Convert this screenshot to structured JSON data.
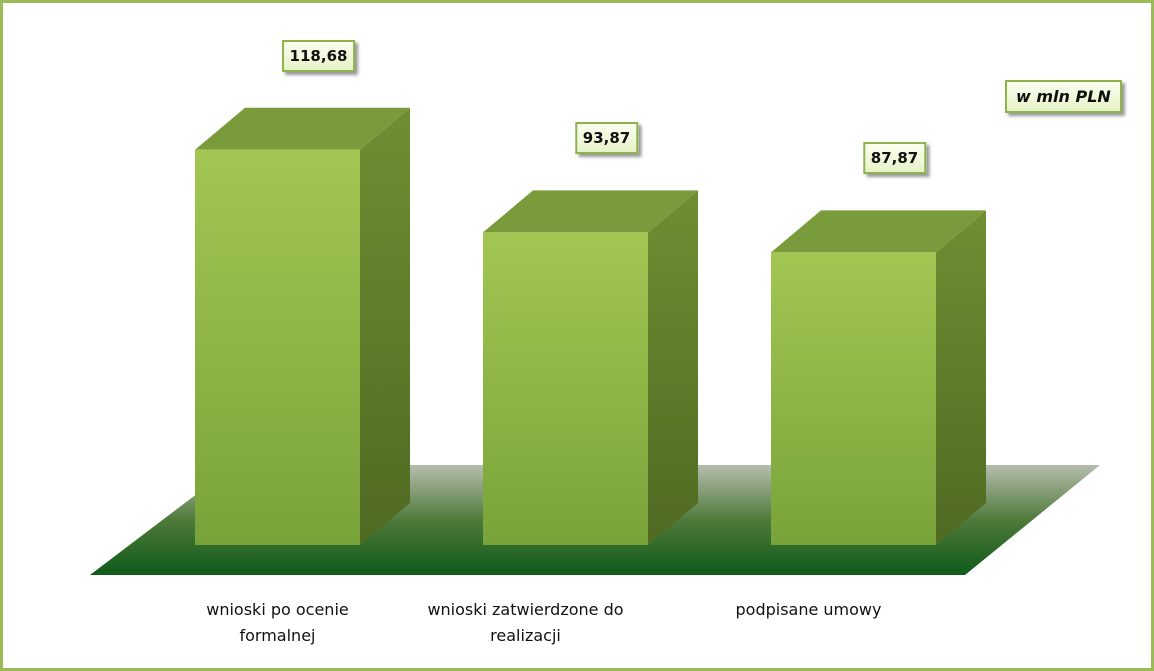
{
  "chart_data": {
    "type": "bar3d",
    "categories": [
      "wnioski po ocenie formalnej",
      "wnioski zatwierdzone do realizacji",
      "podpisane umowy"
    ],
    "values": [
      118.68,
      93.87,
      87.87
    ],
    "value_labels": [
      "118,68",
      "93,87",
      "87,87"
    ],
    "annotation": "w mln PLN",
    "color": "#9bbb59"
  }
}
